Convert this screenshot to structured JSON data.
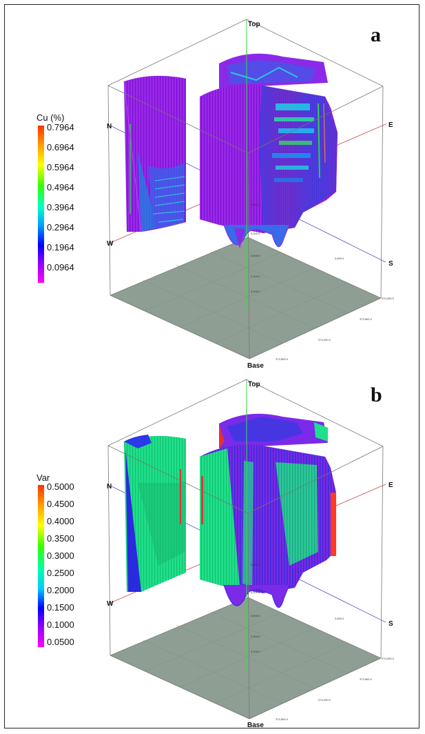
{
  "panels": [
    {
      "letter": "a",
      "colorbar_title": "Cu (%)",
      "colorbar_ticks": [
        "0.7964",
        "0.6964",
        "0.5964",
        "0.4964",
        "0.3964",
        "0.2964",
        "0.1964",
        "0.0964"
      ],
      "colorbar_colors": [
        "#ff3300",
        "#ff9900",
        "#ffff00",
        "#33ff00",
        "#00ffcc",
        "#0099ff",
        "#0000ff",
        "#9900ff",
        "#ff00ff"
      ],
      "directions": {
        "top": "Top",
        "base": "Base",
        "north": "N",
        "east": "E",
        "west": "W",
        "south": "S"
      },
      "coord_labels": [
        "3,200.0",
        "3,200.0",
        "3,600.0",
        "3,600.0",
        "2,200.0",
        "3,200.0",
        "372,800.0",
        "373,200.0",
        "373,600.0",
        "374,000.0"
      ]
    },
    {
      "letter": "b",
      "colorbar_title": "Var",
      "colorbar_ticks": [
        "0.5000",
        "0.4500",
        "0.4000",
        "0.3500",
        "0.3000",
        "0.2500",
        "0.2000",
        "0.1500",
        "0.1000",
        "0.0500"
      ],
      "colorbar_colors": [
        "#ff3300",
        "#ff9900",
        "#ffff00",
        "#33ff00",
        "#00ffaa",
        "#00ccff",
        "#0000ff",
        "#9900ff",
        "#ff00ff"
      ],
      "directions": {
        "top": "Top",
        "base": "Base",
        "north": "N",
        "east": "E",
        "west": "W",
        "south": "S"
      },
      "coord_labels": [
        "3,200.0",
        "3,200.0",
        "3,600.0",
        "3,600.0",
        "2,200.0",
        "3,200.0",
        "372,800.0",
        "373,200.0",
        "373,600.0",
        "374,000.0"
      ]
    }
  ]
}
